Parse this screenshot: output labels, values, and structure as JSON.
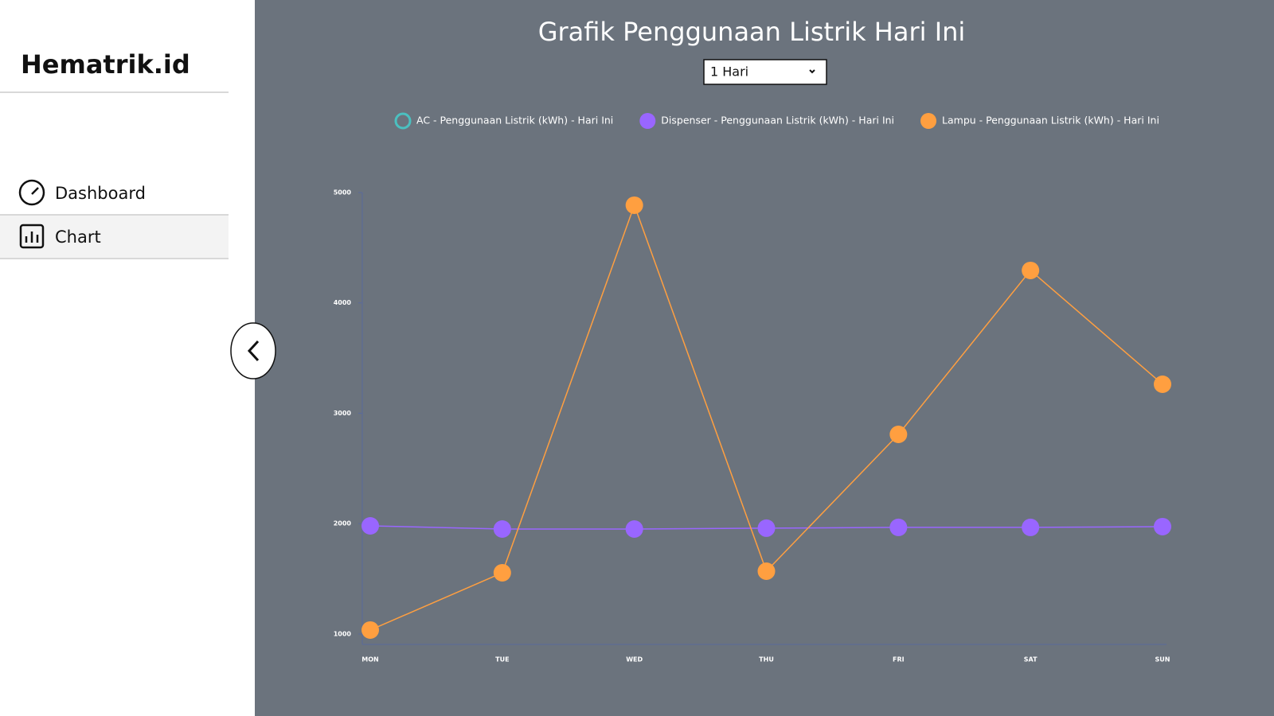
{
  "sidebar": {
    "brand": "Hematrik.id",
    "nav": [
      "Dashboard",
      "Chart"
    ]
  },
  "header": {
    "select": "1 Hari"
  },
  "chart_data": {
    "type": "line",
    "title": "Grafik Penggunaan Listrik Hari Ini",
    "categories": [
      "MON",
      "TUE",
      "WED",
      "THU",
      "FRI",
      "SAT",
      "SUN"
    ],
    "series": [
      {
        "name": "AC - Penggunaan Listrik (kWh) - Hari Ini",
        "color": "#4bc0c0",
        "values": [
          null,
          null,
          null,
          null,
          null,
          null,
          null
        ]
      },
      {
        "name": "Dispenser - Penggunaan Listrik (kWh) - Hari Ini",
        "color": "#9966ff",
        "values": [
          1980,
          1951,
          1951,
          1959,
          1966,
          1966,
          1973
        ]
      },
      {
        "name": "Lampu - Penggunaan Listrik (kWh) - Hari Ini",
        "color": "#ff9f40",
        "values": [
          1036,
          1555,
          4885,
          1569,
          2809,
          4294,
          3263
        ]
      }
    ],
    "ylim": [
      906,
      5000
    ],
    "yticks": [
      1000,
      2000,
      3000,
      4000,
      5000
    ],
    "legend": "top"
  }
}
